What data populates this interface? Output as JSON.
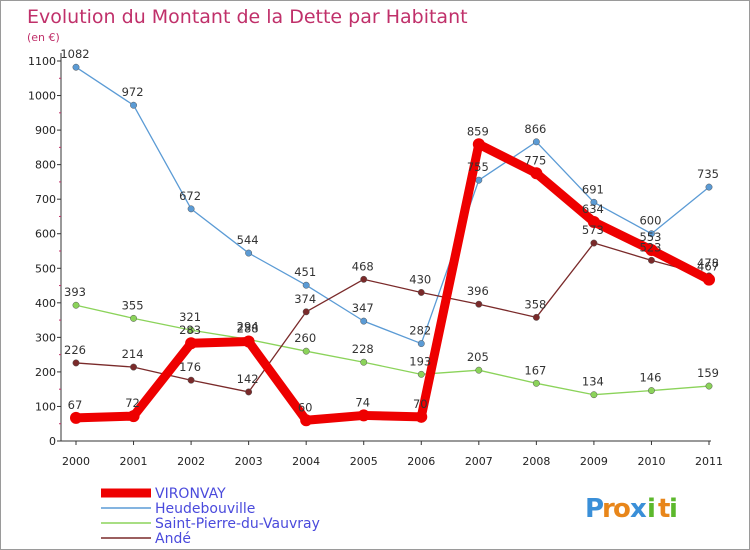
{
  "chart_data": {
    "type": "line",
    "title": "Evolution du Montant de la Dette par Habitant",
    "subtitle": "(en €)",
    "x": [
      "2000",
      "2001",
      "2002",
      "2003",
      "2004",
      "2005",
      "2006",
      "2007",
      "2008",
      "2009",
      "2010",
      "2011"
    ],
    "ylim": [
      0,
      1100
    ],
    "yticks": [
      0,
      100,
      200,
      300,
      400,
      500,
      600,
      700,
      800,
      900,
      1000,
      1100
    ],
    "grid": false,
    "legend_position": "bottom-left",
    "series": [
      {
        "name": "VIRONVAY",
        "color": "#ee0000",
        "values": [
          67,
          72,
          283,
          288,
          60,
          74,
          70,
          859,
          775,
          634,
          553,
          467
        ]
      },
      {
        "name": "Heudebouville",
        "color": "#5b9bd5",
        "values": [
          1082,
          972,
          672,
          544,
          451,
          347,
          282,
          755,
          866,
          691,
          600,
          735
        ]
      },
      {
        "name": "Saint-Pierre-du-Vauvray",
        "color": "#8bd35a",
        "values": [
          393,
          355,
          321,
          294,
          260,
          228,
          193,
          205,
          167,
          134,
          146,
          159
        ]
      },
      {
        "name": "Andé",
        "color": "#7a2a2a",
        "values": [
          226,
          214,
          176,
          142,
          374,
          468,
          430,
          396,
          358,
          573,
          523,
          478
        ]
      }
    ]
  },
  "logo": {
    "text": "Proxiti",
    "letters": [
      "P",
      "r",
      "o",
      "x",
      "i",
      "t",
      "i"
    ],
    "colors": [
      "#3a8fd8",
      "#e8861a",
      "#e8861a",
      "#3a8fd8",
      "#5cb82c",
      "#e8861a",
      "#5cb82c"
    ]
  }
}
